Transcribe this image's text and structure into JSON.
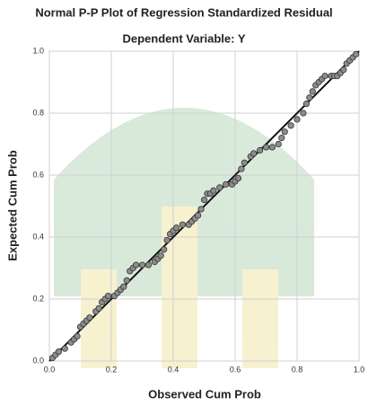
{
  "chart_data": {
    "type": "scatter",
    "title": "Normal P-P Plot of Regression Standardized Residual",
    "subtitle": "Dependent Variable: Y",
    "xlabel": "Observed Cum Prob",
    "ylabel": "Expected Cum Prob",
    "x": [
      0.01,
      0.02,
      0.03,
      0.05,
      0.07,
      0.08,
      0.09,
      0.1,
      0.11,
      0.12,
      0.13,
      0.15,
      0.16,
      0.17,
      0.18,
      0.19,
      0.21,
      0.22,
      0.23,
      0.24,
      0.25,
      0.26,
      0.27,
      0.28,
      0.3,
      0.32,
      0.34,
      0.35,
      0.36,
      0.37,
      0.38,
      0.39,
      0.4,
      0.41,
      0.43,
      0.45,
      0.46,
      0.47,
      0.48,
      0.49,
      0.5,
      0.51,
      0.52,
      0.53,
      0.55,
      0.57,
      0.59,
      0.6,
      0.61,
      0.62,
      0.63,
      0.65,
      0.66,
      0.68,
      0.7,
      0.72,
      0.74,
      0.75,
      0.76,
      0.78,
      0.8,
      0.82,
      0.83,
      0.84,
      0.85,
      0.86,
      0.87,
      0.88,
      0.89,
      0.91,
      0.92,
      0.93,
      0.94,
      0.95,
      0.96,
      0.97,
      0.98,
      0.99
    ],
    "values": [
      0.01,
      0.02,
      0.03,
      0.04,
      0.06,
      0.07,
      0.08,
      0.11,
      0.12,
      0.13,
      0.14,
      0.16,
      0.17,
      0.19,
      0.2,
      0.21,
      0.21,
      0.22,
      0.23,
      0.24,
      0.26,
      0.29,
      0.3,
      0.31,
      0.31,
      0.31,
      0.32,
      0.33,
      0.34,
      0.36,
      0.39,
      0.41,
      0.42,
      0.43,
      0.44,
      0.44,
      0.45,
      0.46,
      0.47,
      0.49,
      0.52,
      0.54,
      0.54,
      0.55,
      0.56,
      0.57,
      0.57,
      0.58,
      0.59,
      0.62,
      0.64,
      0.66,
      0.67,
      0.68,
      0.69,
      0.69,
      0.7,
      0.72,
      0.74,
      0.76,
      0.78,
      0.8,
      0.83,
      0.85,
      0.87,
      0.89,
      0.9,
      0.91,
      0.92,
      0.92,
      0.92,
      0.92,
      0.93,
      0.94,
      0.96,
      0.97,
      0.98,
      0.99
    ],
    "color": "#8c8c8c",
    "line_color": "#111111",
    "reference_line": true,
    "grid": true,
    "xlim": [
      0,
      1
    ],
    "ylim": [
      0,
      1
    ],
    "xticks": [
      {
        "value": 0,
        "label": "0.0"
      },
      0.2,
      0.4,
      0.6,
      0.8,
      {
        "value": 1,
        "label": "1.0"
      }
    ],
    "yticks": [
      {
        "value": 0,
        "label": "0.0"
      },
      0.2,
      0.4,
      0.6,
      0.8,
      {
        "value": 1,
        "label": "1.0"
      }
    ]
  }
}
